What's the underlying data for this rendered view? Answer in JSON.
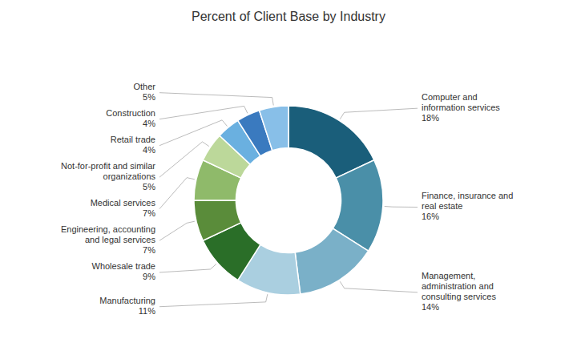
{
  "chart_data": {
    "type": "pie",
    "title": "Percent of Client Base by Industry",
    "categories": [
      "Computer and\ninformation services\n18%",
      "Finance, insurance and\nreal estate\n16%",
      "Management,\nadministration and\nconsulting services\n14%",
      "Manufacturing\n11%",
      "Wholesale trade\n9%",
      "Engineering, accounting\nand legal services\n7%",
      "Medical services\n7%",
      "Not-for-profit and similar\norganizations\n5%",
      "Retail trade\n4%",
      "Construction\n4%",
      "Other\n5%"
    ],
    "values": [
      18,
      16,
      14,
      11,
      9,
      7,
      7,
      5,
      4,
      4,
      5
    ],
    "colors": [
      "#1a5e7a",
      "#4a8fa8",
      "#7ab0c8",
      "#aacfe0",
      "#2a6e28",
      "#5a8c3a",
      "#8fba6a",
      "#bcd89a",
      "#6ab0e0",
      "#3a7abf",
      "#88bfe8"
    ]
  }
}
